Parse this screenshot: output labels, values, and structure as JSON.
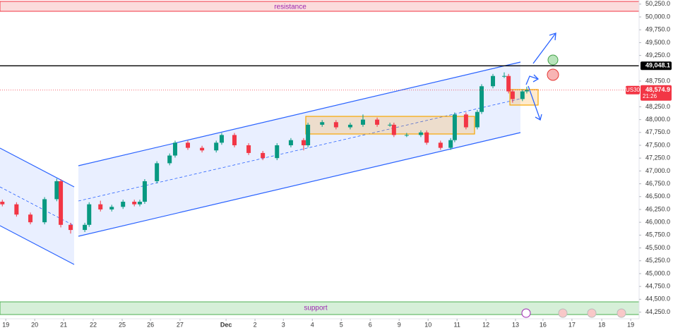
{
  "chart_data": {
    "type": "candlestick",
    "x": [
      -0.12,
      0.37,
      0.85,
      1.34,
      1.76,
      1.9,
      2.24,
      2.73,
      2.88,
      3.27,
      3.66,
      4.05,
      4.44,
      4.63,
      4.8,
      5.22,
      5.66,
      5.85,
      6.29,
      6.78,
      7.27,
      7.46,
      7.9,
      8.39,
      8.88,
      9.37,
      9.85,
      10.29,
      10.44,
      10.93,
      11.41,
      11.9,
      12.34,
      12.83,
      13.27,
      13.41,
      13.85,
      14.34,
      14.54,
      15.02,
      15.37,
      15.51,
      15.9,
      16.29,
      16.44,
      16.83,
      17.22,
      17.37,
      17.51,
      17.85,
      18.0
    ],
    "open": [
      46400,
      46350,
      46150,
      46000,
      46450,
      46800,
      45950,
      45850,
      45950,
      46350,
      46250,
      46300,
      46400,
      46350,
      46400,
      46800,
      47150,
      47300,
      47550,
      47450,
      47400,
      47550,
      47700,
      47500,
      47350,
      47250,
      47500,
      47600,
      47500,
      47900,
      47950,
      47850,
      47900,
      48000,
      47900,
      47900,
      47700,
      47700,
      47750,
      47550,
      47450,
      47600,
      48100,
      47850,
      48150,
      48650,
      48850,
      48850,
      48550,
      48400,
      48550
    ],
    "high": [
      46440,
      46390,
      46190,
      46490,
      46850,
      46840,
      45990,
      45990,
      46390,
      46420,
      46340,
      46440,
      46440,
      46440,
      46840,
      47190,
      47340,
      47590,
      47590,
      47490,
      47590,
      47740,
      47740,
      47540,
      47390,
      47540,
      47640,
      47640,
      47940,
      47990,
      47990,
      47940,
      48100,
      48040,
      47940,
      47940,
      47740,
      47790,
      47790,
      47590,
      47640,
      48140,
      48140,
      48190,
      48690,
      48890,
      48920,
      48890,
      48590,
      48590,
      48640
    ],
    "low": [
      46310,
      46110,
      45960,
      45960,
      46410,
      45900,
      45780,
      45810,
      45910,
      46210,
      46210,
      46260,
      46310,
      46310,
      46360,
      46760,
      47110,
      47260,
      47410,
      47360,
      47360,
      47510,
      47460,
      47310,
      47210,
      47210,
      47460,
      47400,
      47460,
      47860,
      47810,
      47810,
      47860,
      47860,
      47860,
      47660,
      47660,
      47660,
      47510,
      47410,
      47410,
      47560,
      47810,
      47810,
      48110,
      48610,
      48810,
      48510,
      48330,
      48360,
      48510
    ],
    "close": [
      46350,
      46150,
      46000,
      46450,
      46800,
      45950,
      45850,
      45950,
      46350,
      46250,
      46300,
      46400,
      46350,
      46400,
      46800,
      47150,
      47300,
      47550,
      47450,
      47400,
      47550,
      47700,
      47500,
      47350,
      47250,
      47500,
      47600,
      47500,
      47900,
      47950,
      47850,
      47900,
      48000,
      47900,
      47900,
      47700,
      47700,
      47750,
      47550,
      47450,
      47600,
      48100,
      47850,
      48150,
      48650,
      48850,
      48850,
      48550,
      48400,
      48550,
      48574.9
    ],
    "up_color": "#089981",
    "down_color": "#f23645",
    "xlim": [
      -0.2,
      21.88
    ],
    "xticks": [
      {
        "value": 0,
        "label": "19"
      },
      {
        "value": 1,
        "label": "20"
      },
      {
        "value": 2,
        "label": "21"
      },
      {
        "value": 3.02,
        "label": "22"
      },
      {
        "value": 4.02,
        "label": "25"
      },
      {
        "value": 5,
        "label": "26"
      },
      {
        "value": 6.02,
        "label": "27"
      },
      {
        "value": 7.61,
        "label": "Dec"
      },
      {
        "value": 8.61,
        "label": "2"
      },
      {
        "value": 9.59,
        "label": "3"
      },
      {
        "value": 10.59,
        "label": "4"
      },
      {
        "value": 11.59,
        "label": "5"
      },
      {
        "value": 12.59,
        "label": "6"
      },
      {
        "value": 13.59,
        "label": "9"
      },
      {
        "value": 14.59,
        "label": "10"
      },
      {
        "value": 15.59,
        "label": "11"
      },
      {
        "value": 16.59,
        "label": "12"
      },
      {
        "value": 17.61,
        "label": "13"
      },
      {
        "value": 18.56,
        "label": "16"
      },
      {
        "value": 19.56,
        "label": "17"
      },
      {
        "value": 20.59,
        "label": "18"
      },
      {
        "value": 21.59,
        "label": "19"
      }
    ],
    "ylim": [
      44120,
      50330
    ],
    "yticks": [
      {
        "value": 44250,
        "label": "44,250.0"
      },
      {
        "value": 44500,
        "label": "44,500.0"
      },
      {
        "value": 44750,
        "label": "44,750.0"
      },
      {
        "value": 45000,
        "label": "45,000.0"
      },
      {
        "value": 45250,
        "label": "45,250.0"
      },
      {
        "value": 45500,
        "label": "45,500.0"
      },
      {
        "value": 45750,
        "label": "45,750.0"
      },
      {
        "value": 46000,
        "label": "46,000.0"
      },
      {
        "value": 46250,
        "label": "46,250.0"
      },
      {
        "value": 46500,
        "label": "46,500.0"
      },
      {
        "value": 46750,
        "label": "46,750.0"
      },
      {
        "value": 47000,
        "label": "47,000.0"
      },
      {
        "value": 47250,
        "label": "47,250.0"
      },
      {
        "value": 47500,
        "label": "47,500.0"
      },
      {
        "value": 47750,
        "label": "47,750.0"
      },
      {
        "value": 48000,
        "label": "48,000.0"
      },
      {
        "value": 48250,
        "label": "48,250.0"
      },
      {
        "value": 48750,
        "label": "48,750.0"
      },
      {
        "value": 49250,
        "label": "49,250.0"
      },
      {
        "value": 49500,
        "label": "49,500.0"
      },
      {
        "value": 49750,
        "label": "49,750.0"
      },
      {
        "value": 50000,
        "label": "50,000.0"
      },
      {
        "value": 50250,
        "label": "50,250.0"
      }
    ],
    "annotations": [
      "resistance",
      "support"
    ],
    "level_line": {
      "value": 49048.1,
      "label": "49,048.1"
    },
    "last_price": {
      "value": 48574.9,
      "label": "48,574.9"
    },
    "symbol": "US30",
    "countdown": "21:26"
  }
}
